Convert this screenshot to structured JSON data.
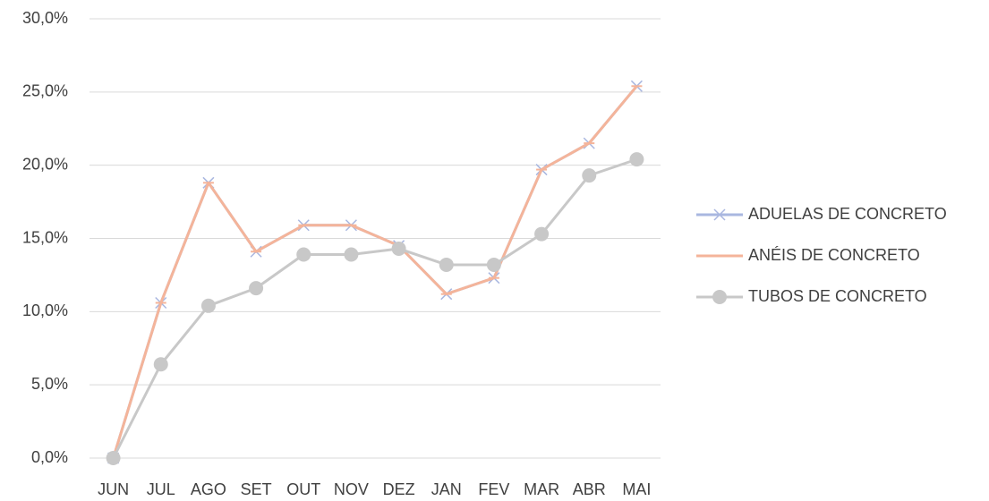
{
  "chart_data": {
    "type": "line",
    "categories": [
      "JUN",
      "JUL",
      "AGO",
      "SET",
      "OUT",
      "NOV",
      "DEZ",
      "JAN",
      "FEV",
      "MAR",
      "ABR",
      "MAI"
    ],
    "series": [
      {
        "name": "ADUELAS DE CONCRETO",
        "color": "#a9b7e0",
        "marker": "x",
        "values": [
          0,
          10.6,
          18.8,
          14.1,
          15.9,
          15.9,
          14.5,
          11.2,
          12.3,
          19.7,
          21.5,
          25.4
        ]
      },
      {
        "name": "ANÉIS DE CONCRETO",
        "color": "#f4b49a",
        "marker": "dash",
        "values": [
          0,
          10.6,
          18.8,
          14.1,
          15.9,
          15.9,
          14.5,
          11.2,
          12.3,
          19.7,
          21.5,
          25.4
        ]
      },
      {
        "name": "TUBOS DE CONCRETO",
        "color": "#c8c8c8",
        "marker": "circle",
        "values": [
          0,
          6.4,
          10.4,
          11.6,
          13.9,
          13.9,
          14.3,
          13.2,
          13.2,
          15.3,
          19.3,
          20.4
        ]
      }
    ],
    "ylim": [
      0,
      30
    ],
    "yticks": [
      {
        "value": 0,
        "label": "0,0%"
      },
      {
        "value": 5,
        "label": "5,0%"
      },
      {
        "value": 10,
        "label": "10,0%"
      },
      {
        "value": 15,
        "label": "15,0%"
      },
      {
        "value": 20,
        "label": "20,0%"
      },
      {
        "value": 25,
        "label": "25,0%"
      },
      {
        "value": 30,
        "label": "30,0%"
      }
    ],
    "grid": true,
    "legend": "right"
  }
}
